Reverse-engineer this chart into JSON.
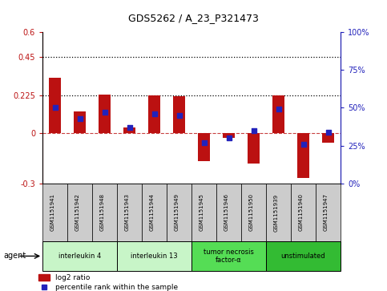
{
  "title": "GDS5262 / A_23_P321473",
  "samples": [
    "GSM1151941",
    "GSM1151942",
    "GSM1151948",
    "GSM1151943",
    "GSM1151944",
    "GSM1151949",
    "GSM1151945",
    "GSM1151946",
    "GSM1151950",
    "GSM1151939",
    "GSM1151940",
    "GSM1151947"
  ],
  "log2_ratio": [
    0.33,
    0.13,
    0.23,
    0.03,
    0.225,
    0.22,
    -0.17,
    -0.03,
    -0.18,
    0.225,
    -0.27,
    -0.06
  ],
  "percentile_rank": [
    50,
    43,
    47,
    37,
    46,
    45,
    27,
    30,
    35,
    49,
    26,
    34
  ],
  "groups": [
    {
      "label": "interleukin 4",
      "start": 0,
      "end": 3,
      "color": "#c8f5c8"
    },
    {
      "label": "interleukin 13",
      "start": 3,
      "end": 6,
      "color": "#c8f5c8"
    },
    {
      "label": "tumor necrosis\nfactor-α",
      "start": 6,
      "end": 9,
      "color": "#55dd55"
    },
    {
      "label": "unstimulated",
      "start": 9,
      "end": 12,
      "color": "#33bb33"
    }
  ],
  "ylim_left": [
    -0.3,
    0.6
  ],
  "ylim_right": [
    0,
    100
  ],
  "yticks_left": [
    -0.3,
    0,
    0.225,
    0.45,
    0.6
  ],
  "yticks_right": [
    0,
    25,
    50,
    75,
    100
  ],
  "ytick_labels_left": [
    "-0.3",
    "0",
    "0.225",
    "0.45",
    "0.6"
  ],
  "ytick_labels_right": [
    "0%",
    "25%",
    "50%",
    "75%",
    "100%"
  ],
  "hlines": [
    0.225,
    0.45
  ],
  "bar_color_red": "#bb1111",
  "bar_color_blue": "#2222bb",
  "bar_width": 0.5,
  "legend_items": [
    "log2 ratio",
    "percentile rank within the sample"
  ],
  "agent_label": "agent"
}
